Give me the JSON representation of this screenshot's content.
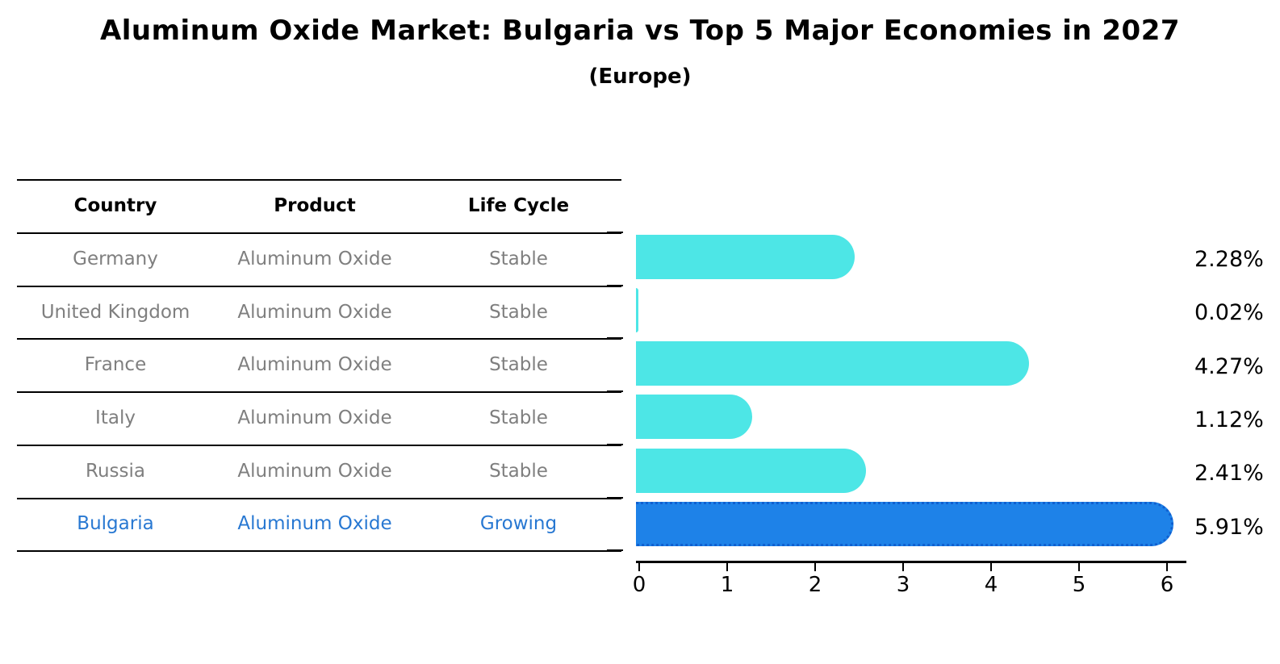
{
  "title": "Aluminum Oxide Market: Bulgaria vs Top 5 Major Economies in 2027",
  "subtitle": "(Europe)",
  "table": {
    "headers": [
      "Country",
      "Product",
      "Life Cycle"
    ],
    "rows": [
      {
        "country": "Germany",
        "product": "Aluminum Oxide",
        "life_cycle": "Stable",
        "highlight": false
      },
      {
        "country": "United Kingdom",
        "product": "Aluminum Oxide",
        "life_cycle": "Stable",
        "highlight": false
      },
      {
        "country": "France",
        "product": "Aluminum Oxide",
        "life_cycle": "Stable",
        "highlight": false
      },
      {
        "country": "Italy",
        "product": "Aluminum Oxide",
        "life_cycle": "Stable",
        "highlight": false
      },
      {
        "country": "Russia",
        "product": "Aluminum Oxide",
        "life_cycle": "Stable",
        "highlight": false
      },
      {
        "country": "Bulgaria",
        "product": "Aluminum Oxide",
        "life_cycle": "Growing",
        "highlight": true
      }
    ]
  },
  "chart_data": {
    "type": "bar",
    "orientation": "horizontal",
    "title": "Aluminum Oxide Market: Bulgaria vs Top 5 Major Economies in 2027",
    "subtitle": "(Europe)",
    "categories": [
      "Germany",
      "United Kingdom",
      "France",
      "Italy",
      "Russia",
      "Bulgaria"
    ],
    "values": [
      2.28,
      0.02,
      4.27,
      1.12,
      2.41,
      5.91
    ],
    "value_labels": [
      "2.28%",
      "0.02%",
      "4.27%",
      "1.12%",
      "2.41%",
      "5.91%"
    ],
    "xlabel": "",
    "ylabel": "",
    "x_ticks": [
      "0",
      "1",
      "2",
      "3",
      "4",
      "5",
      "6"
    ],
    "xlim": [
      0,
      6.25
    ],
    "grid": false,
    "legend": "none",
    "colors": {
      "bar_default": "#4DE6E6",
      "bar_highlight": "#1E82E8",
      "bar_highlight_border": "#1060d0",
      "text_default": "#7f7f7f",
      "text_highlight": "#2878d2",
      "axis": "#000000"
    }
  }
}
